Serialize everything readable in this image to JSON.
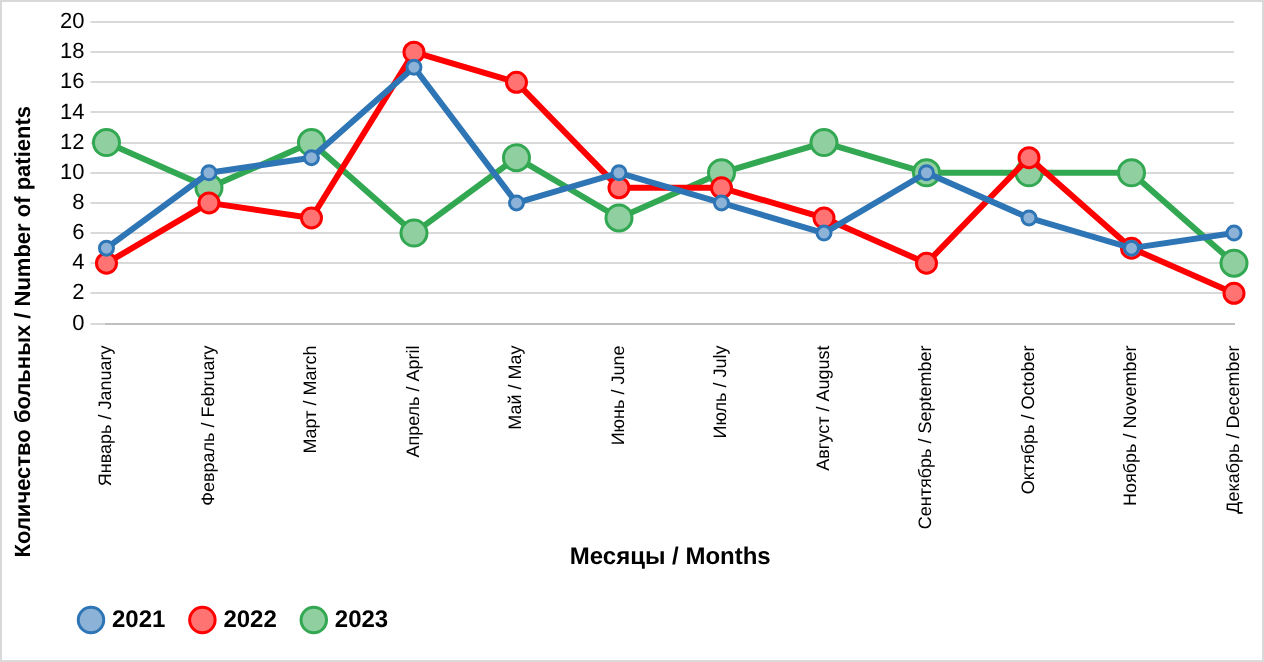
{
  "chart_data": {
    "type": "line",
    "xlabel": "Месяцы / Months",
    "ylabel": "Количество больных / Number of patients",
    "categories": [
      "Январь / January",
      "Февраль / February",
      "Март / March",
      "Апрель / April",
      "Май / May",
      "Июнь / June",
      "Июль / July",
      "Август / August",
      "Сентябрь / September",
      "Октябрь / October",
      "Ноябрь / November",
      "Декабрь / December"
    ],
    "series": [
      {
        "name": "2021",
        "color": "#2e75b6",
        "values": [
          5,
          10,
          11,
          17,
          8,
          10,
          8,
          6,
          10,
          7,
          5,
          6
        ]
      },
      {
        "name": "2022",
        "color": "#ff0000",
        "values": [
          4,
          8,
          7,
          18,
          16,
          9,
          9,
          7,
          4,
          11,
          5,
          2
        ]
      },
      {
        "name": "2023",
        "color": "#33a852",
        "values": [
          12,
          9,
          12,
          6,
          11,
          7,
          10,
          12,
          10,
          10,
          10,
          4
        ]
      }
    ],
    "ylim": [
      0,
      20
    ],
    "yticks": [
      0,
      2,
      4,
      6,
      8,
      10,
      12,
      14,
      16,
      18,
      20
    ],
    "grid": "y",
    "legend": "bottom left",
    "marker": "circle",
    "line_style": "solid"
  }
}
